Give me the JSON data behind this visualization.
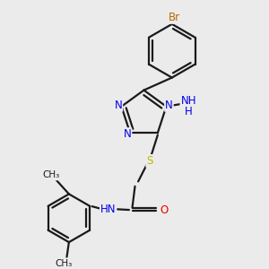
{
  "bg_color": "#ebebeb",
  "bond_color": "#1a1a1a",
  "bond_width": 1.6,
  "atom_colors": {
    "N": "#0000ee",
    "S": "#bbbb00",
    "O": "#ee0000",
    "Br": "#bb6600",
    "C": "#1a1a1a",
    "H": "#0000ee"
  },
  "font_size": 8.5,
  "fig_size": [
    3.0,
    3.0
  ],
  "dpi": 100,
  "xlim": [
    0,
    10
  ],
  "ylim": [
    0,
    10
  ]
}
